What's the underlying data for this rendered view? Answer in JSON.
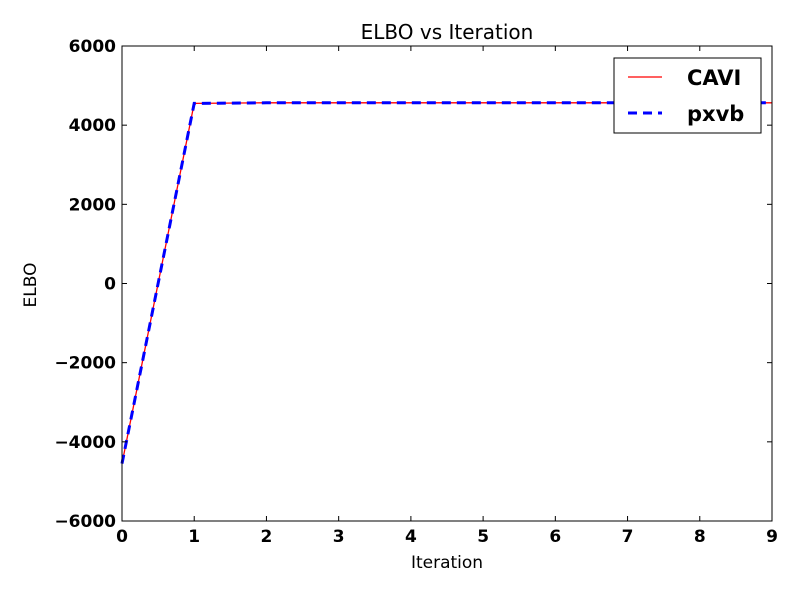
{
  "chart_data": {
    "type": "line",
    "title": "ELBO vs Iteration",
    "xlabel": "Iteration",
    "ylabel": "ELBO",
    "xlim": [
      0,
      9
    ],
    "ylim": [
      -6000,
      6000
    ],
    "x_ticks": [
      "0",
      "1",
      "2",
      "3",
      "4",
      "5",
      "6",
      "7",
      "8",
      "9"
    ],
    "y_ticks": [
      "6000",
      "4000",
      "2000",
      "0",
      "−2000",
      "−4000",
      "−6000"
    ],
    "y_tick_values": [
      6000,
      4000,
      2000,
      0,
      -2000,
      -4000,
      -6000
    ],
    "grid": false,
    "legend_position": "top-right",
    "x": [
      0,
      1,
      2,
      3,
      4,
      5,
      6,
      7,
      8,
      9
    ],
    "series": [
      {
        "name": "CAVI",
        "values": [
          -4550,
          4550,
          4565,
          4565,
          4565,
          4565,
          4565,
          4565,
          4565,
          4565
        ],
        "color": "#ff0000",
        "line_style": "solid"
      },
      {
        "name": "pxvb",
        "values": [
          -4550,
          4550,
          4565,
          4565,
          4565,
          4565,
          4565,
          4565,
          4565,
          4565
        ],
        "color": "#0000ff",
        "line_style": "dashed"
      }
    ]
  }
}
